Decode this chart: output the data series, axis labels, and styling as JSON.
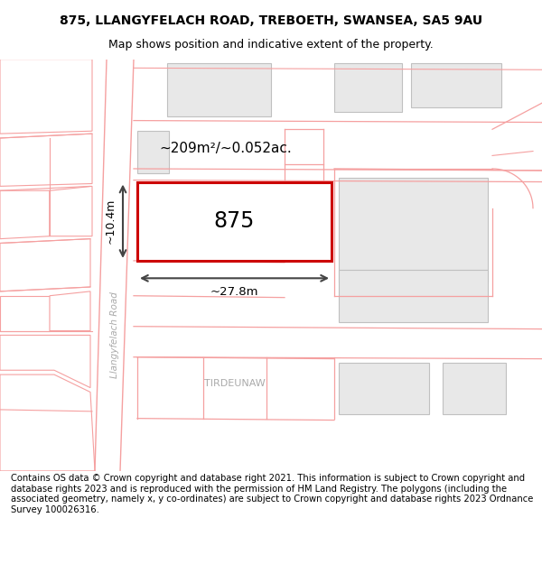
{
  "title_line1": "875, LLANGYFELACH ROAD, TREBOETH, SWANSEA, SA5 9AU",
  "title_line2": "Map shows position and indicative extent of the property.",
  "footer_text": "Contains OS data © Crown copyright and database right 2021. This information is subject to Crown copyright and database rights 2023 and is reproduced with the permission of HM Land Registry. The polygons (including the associated geometry, namely x, y co-ordinates) are subject to Crown copyright and database rights 2023 Ordnance Survey 100026316.",
  "map_bg": "#ffffff",
  "building_fill": "#e8e8e8",
  "building_edge": "#c0c0c0",
  "road_color": "#f5a0a0",
  "highlight_color": "#cc0000",
  "highlight_fill": "#ffffff",
  "property_label": "875",
  "area_label": "~209m²/~0.052ac.",
  "width_label": "~27.8m",
  "height_label": "~10.4m",
  "road_label": "Llangyfelach Road",
  "district_label": "TIRDEUNAW",
  "title_fontsize": 10,
  "subtitle_fontsize": 9,
  "footer_fontsize": 7.2,
  "dim_arrow_color": "#444444",
  "road_text_color": "#aaaaaa",
  "district_text_color": "#aaaaaa"
}
